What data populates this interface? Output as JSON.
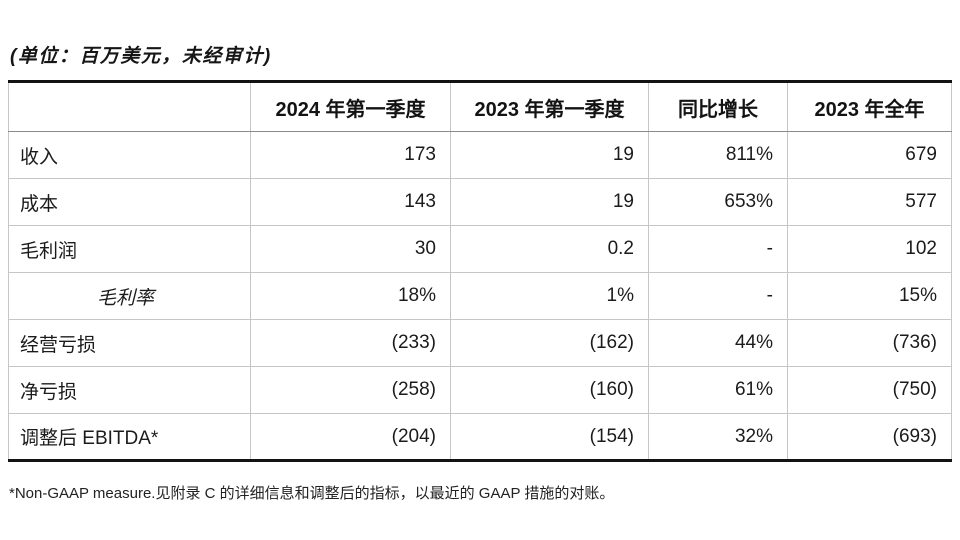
{
  "page": {
    "unit_note": "(单位：百万美元，未经审计)",
    "footnote": "*Non-GAAP measure.见附录 C 的详细信息和调整后的指标，以最近的 GAAP 措施的对账。"
  },
  "colors": {
    "background": "#ffffff",
    "text": "#1b1b1b",
    "heavy_border": "#131313",
    "header_separator": "#8a8a8a",
    "grid_line": "#c6c6c6"
  },
  "table": {
    "columns": [
      "",
      "2024 年第一季度",
      "2023 年第一季度",
      "同比增长",
      "2023 年全年"
    ],
    "rows": [
      {
        "label": "收入",
        "values": [
          "173",
          "19",
          "811%",
          "679"
        ]
      },
      {
        "label": "成本",
        "values": [
          "143",
          "19",
          "653%",
          "577"
        ]
      },
      {
        "label": "毛利润",
        "values": [
          "30",
          "0.2",
          "-",
          "102"
        ]
      },
      {
        "label": "毛利率",
        "values": [
          "18%",
          "1%",
          "-",
          "15%"
        ]
      },
      {
        "label": "经营亏损",
        "values": [
          "(233)",
          "(162)",
          "44%",
          "(736)"
        ]
      },
      {
        "label": "净亏损",
        "values": [
          "(258)",
          "(160)",
          "61%",
          "(750)"
        ]
      },
      {
        "label": "调整后 EBITDA*",
        "values": [
          "(204)",
          "(154)",
          "32%",
          "(693)"
        ]
      }
    ]
  }
}
